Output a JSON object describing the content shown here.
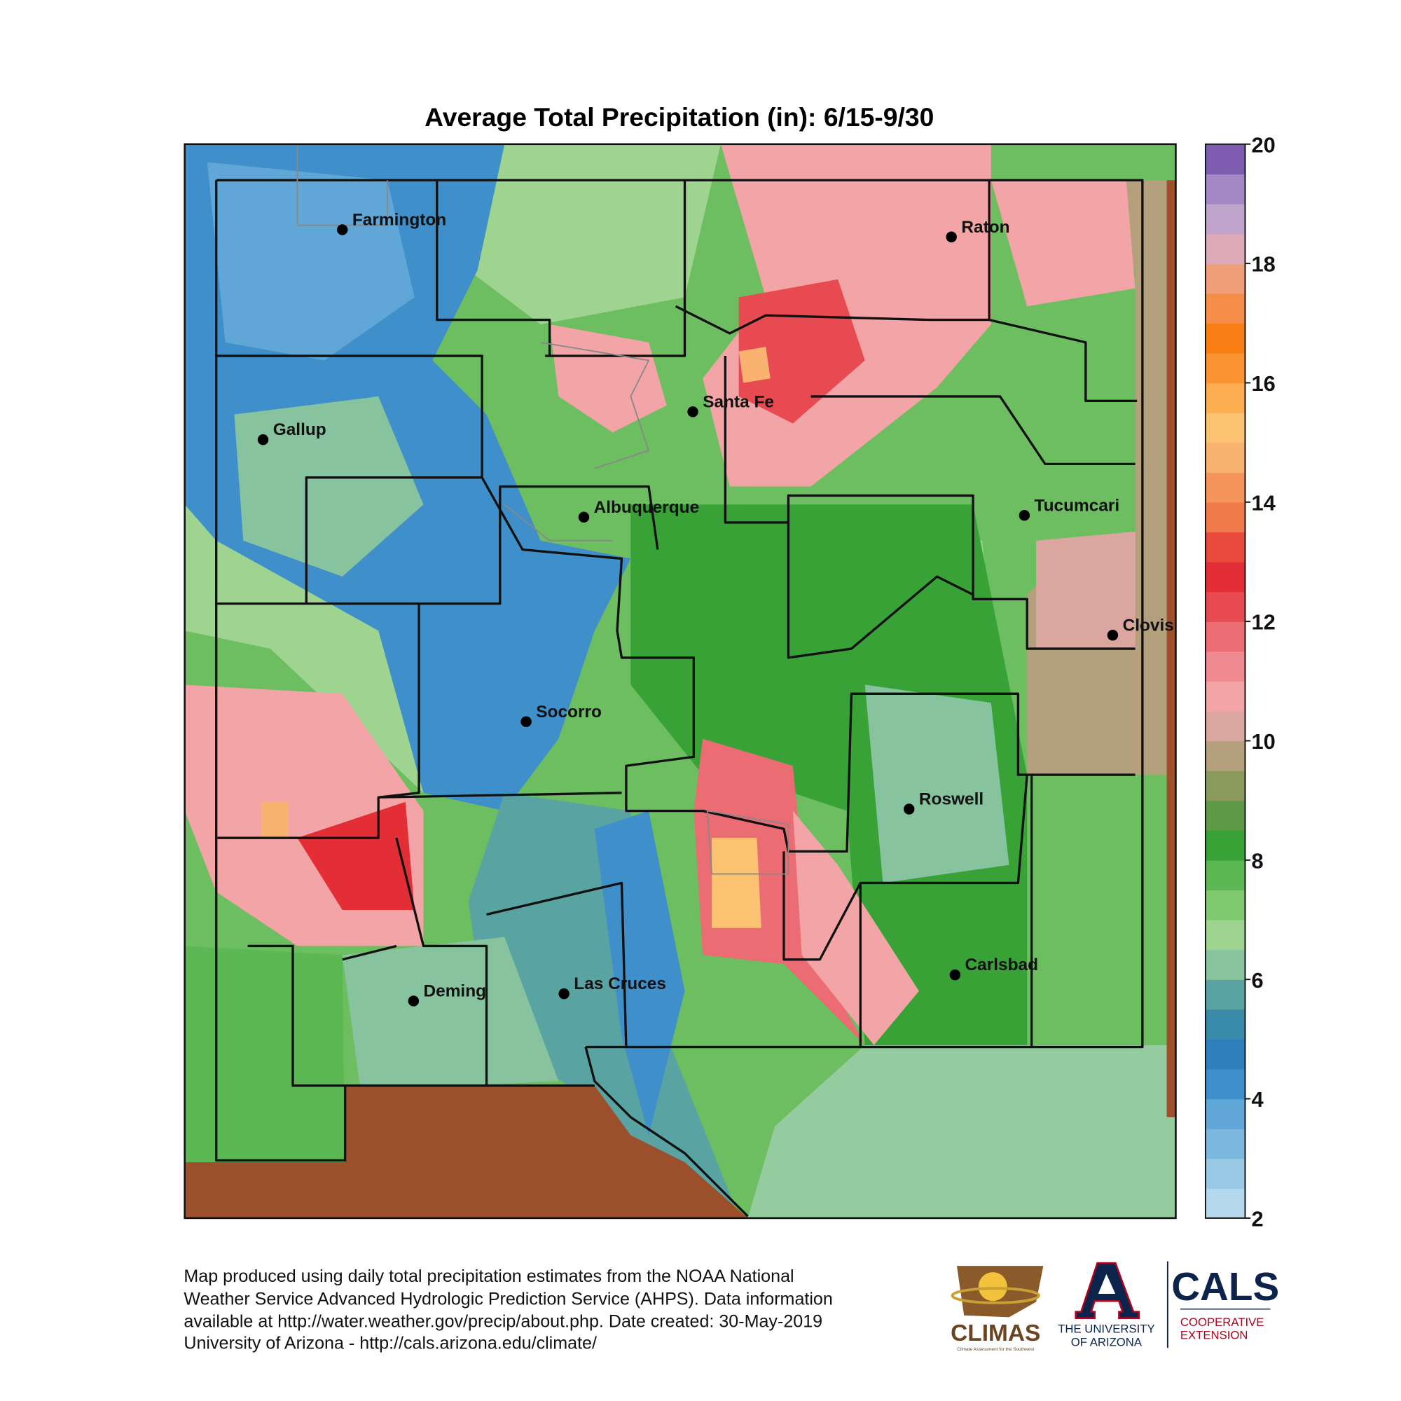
{
  "title": "Average Total Precipitation (in): 6/15-9/30",
  "cities": [
    "Farmington",
    "Raton",
    "Gallup",
    "Santa Fe",
    "Albuquerque",
    "Tucumcari",
    "Clovis",
    "Socorro",
    "Roswell",
    "Carlsbad",
    "Deming",
    "Las Cruces"
  ],
  "colorbar": {
    "ticks": [
      2,
      4,
      6,
      8,
      10,
      12,
      14,
      16,
      18,
      20
    ],
    "colors": [
      "#b4d8ec",
      "#98c8e4",
      "#7cb8de",
      "#60a6d6",
      "#3f8fca",
      "#2f7fbd",
      "#3a8aa9",
      "#5aa3a3",
      "#86c39e",
      "#9fd490",
      "#7fca6e",
      "#5cb852",
      "#38a236",
      "#5e9a48",
      "#8a9a5c",
      "#b4a07c",
      "#dca6a0",
      "#f2a4a6",
      "#f08a90",
      "#ec6c74",
      "#e84a52",
      "#e42e36",
      "#e84a3c",
      "#f07a4a",
      "#f5955a",
      "#f9b270",
      "#fbc272",
      "#fcae50",
      "#fa9430",
      "#f87e14",
      "#f48e48",
      "#f0a078",
      "#dcaab8",
      "#bfa4cc",
      "#a288c4",
      "#7e5cb0"
    ]
  },
  "footer": [
    "Map produced using daily total precipitation estimates from the NOAA National",
    "Weather Service Advanced Hydrologic Prediction Service (AHPS). Data information",
    "available at http://water.weather.gov/precip/about.php. Date created: 30-May-2019",
    "University of Arizona - http://cals.arizona.edu/climate/"
  ],
  "logos": {
    "climas": "CLIMAS",
    "climas_tagline": "Climate Assessment for the Southwest",
    "ua": [
      "THE UNIVERSITY",
      "OF ARIZONA"
    ],
    "cals": "CALS",
    "cals_sub": [
      "COOPERATIVE",
      "EXTENSION"
    ]
  }
}
